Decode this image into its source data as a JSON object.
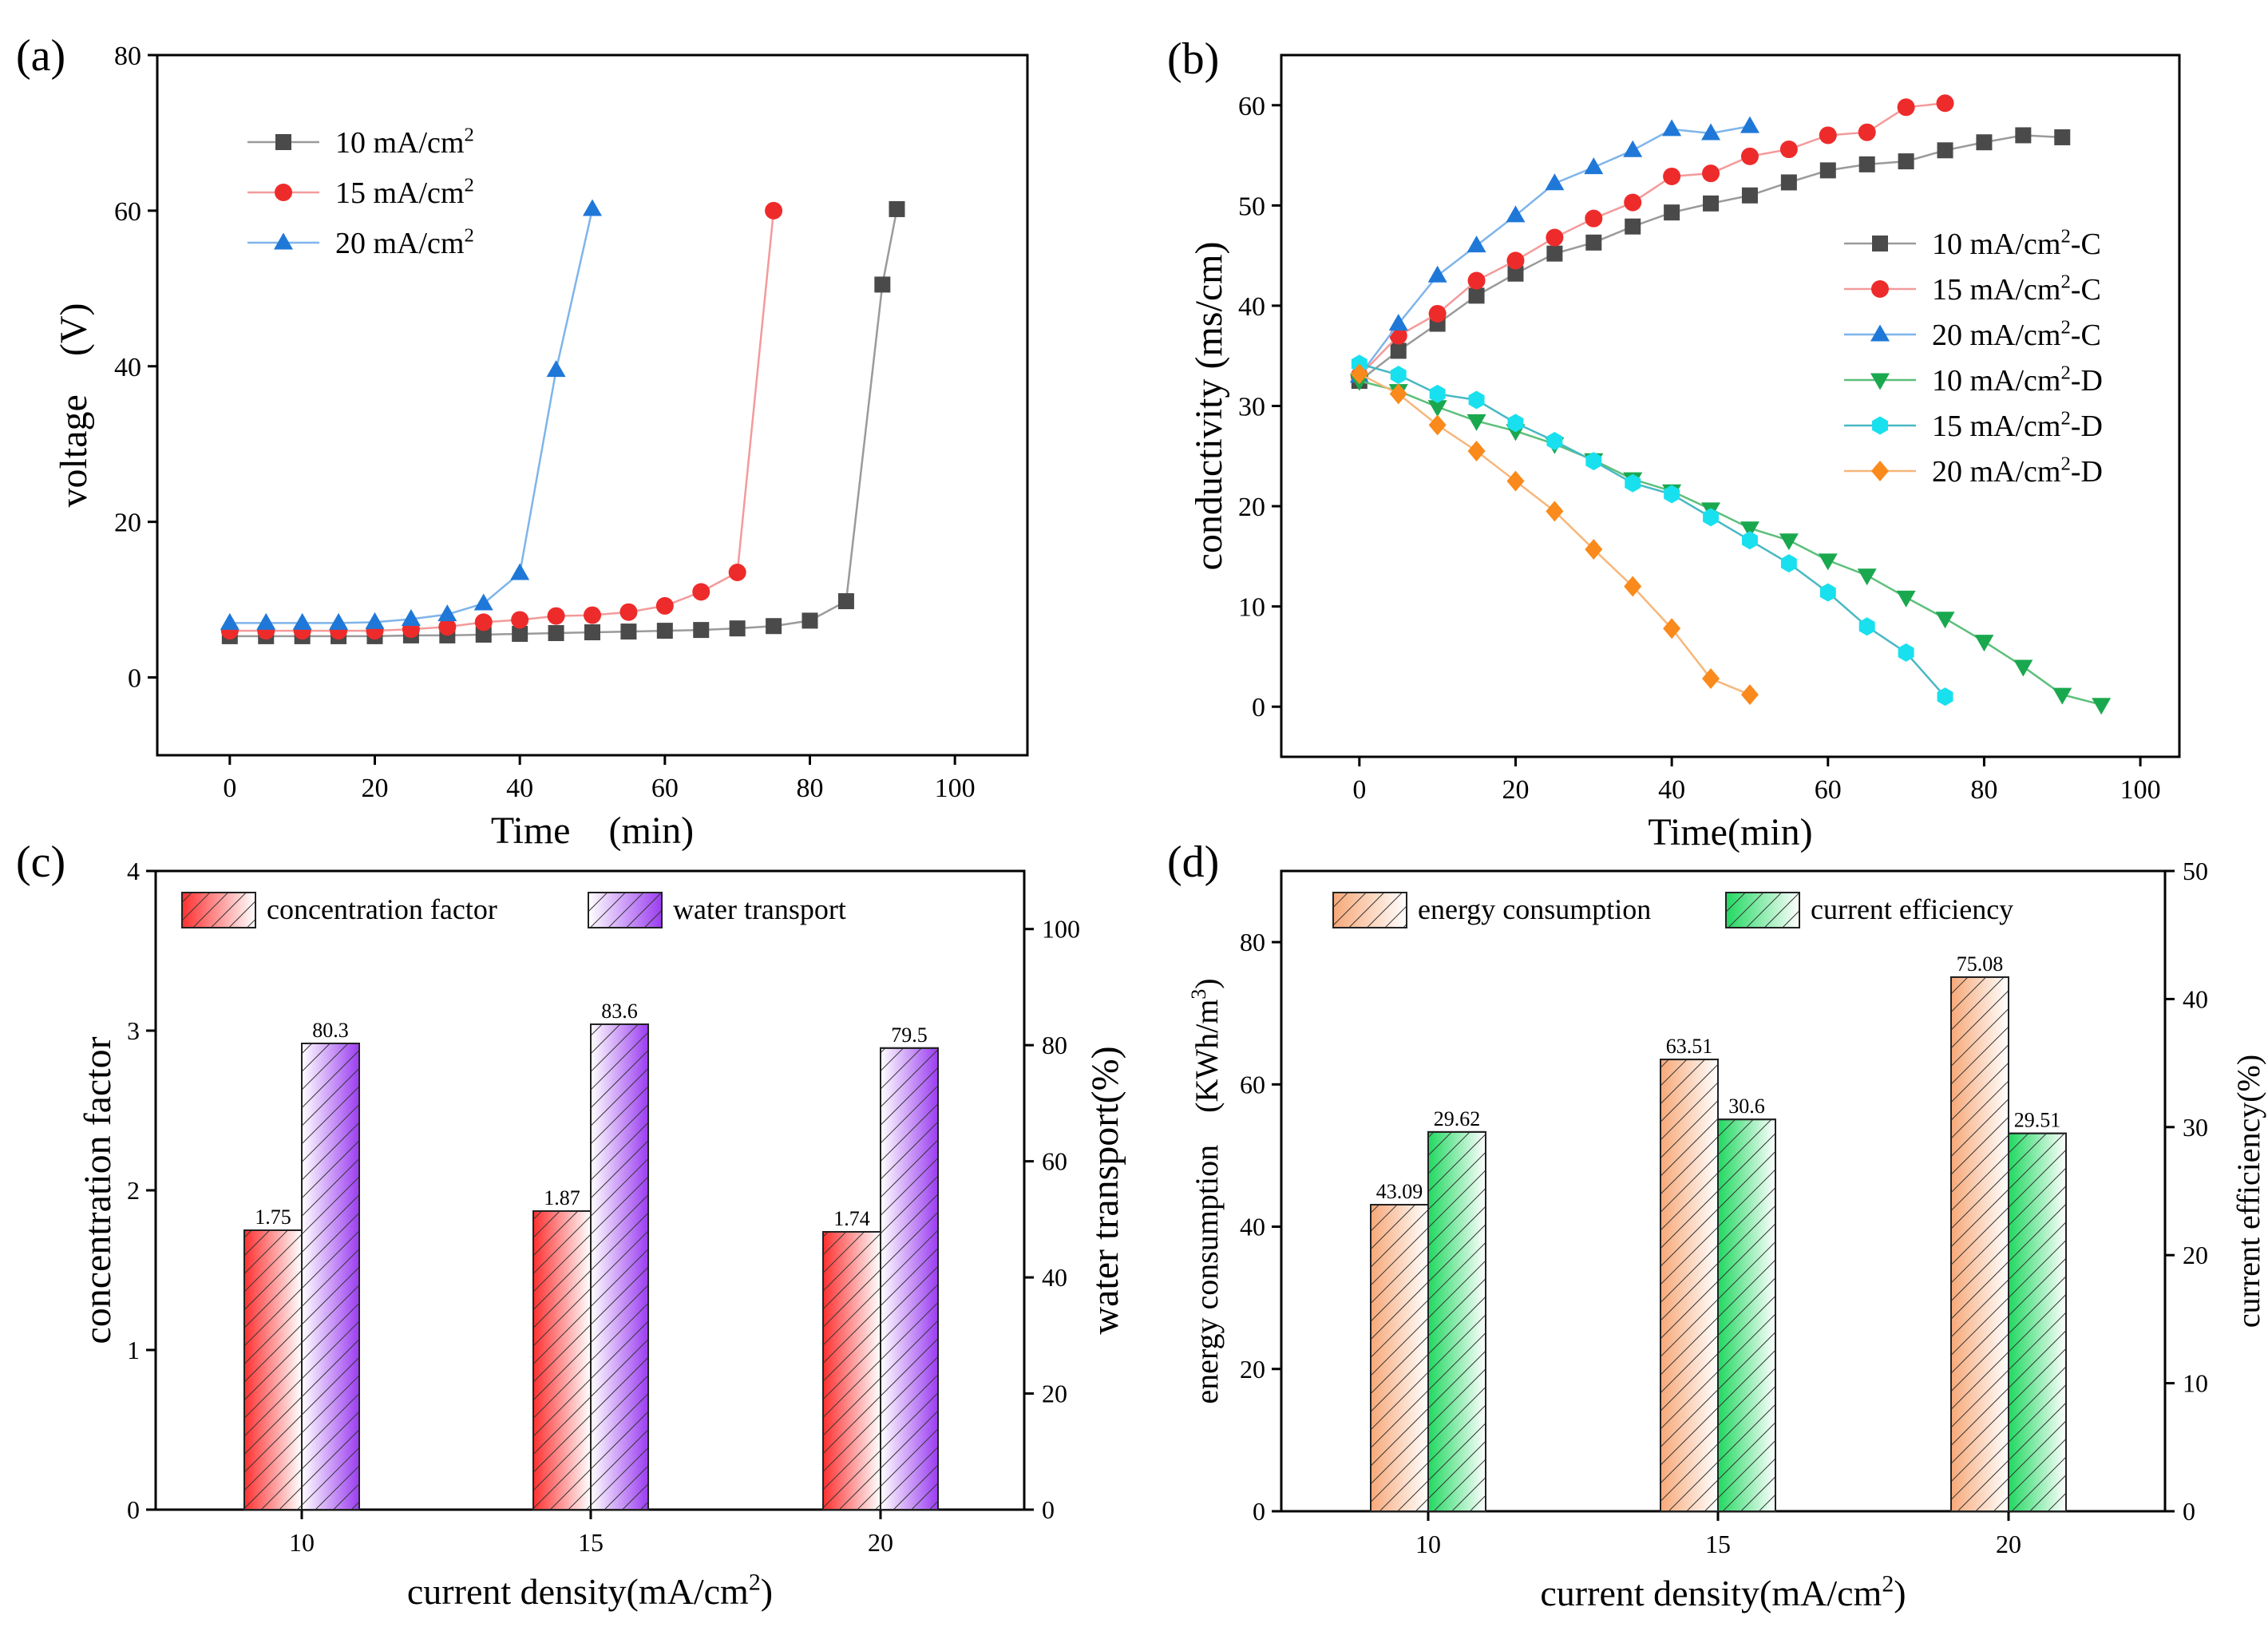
{
  "panels": {
    "a": {
      "label": "(a)"
    },
    "b": {
      "label": "(b)"
    },
    "c": {
      "label": "(c)"
    },
    "d": {
      "label": "(d)"
    }
  },
  "chart_data": [
    {
      "id": "a",
      "type": "line",
      "title": "",
      "xlabel": "Time　(min)",
      "ylabel": "voltage　(V)",
      "xlim": [
        -10,
        110
      ],
      "ylim": [
        -10,
        80
      ],
      "xticks": [
        0,
        20,
        40,
        60,
        80,
        100
      ],
      "yticks": [
        0,
        20,
        40,
        60,
        80
      ],
      "legend_position": "top-left",
      "series": [
        {
          "name": "10 mA/cm",
          "sup": "2",
          "suffix": "",
          "marker": "square",
          "color": "#4a4a4a",
          "line": "#9a9a9a",
          "x": [
            0,
            5,
            10,
            15,
            20,
            25,
            30,
            35,
            40,
            45,
            50,
            55,
            60,
            65,
            70,
            75,
            80,
            85,
            90,
            92
          ],
          "y": [
            5.3,
            5.3,
            5.3,
            5.3,
            5.3,
            5.4,
            5.4,
            5.5,
            5.6,
            5.7,
            5.8,
            5.9,
            6.0,
            6.1,
            6.3,
            6.6,
            7.3,
            9.8,
            50.5,
            60.2
          ]
        },
        {
          "name": "15 mA/cm",
          "sup": "2",
          "suffix": "",
          "marker": "circle",
          "color": "#ee2b2b",
          "line": "#f49a9a",
          "x": [
            0,
            5,
            10,
            15,
            20,
            25,
            30,
            35,
            40,
            45,
            50,
            55,
            60,
            65,
            70,
            75
          ],
          "y": [
            6.0,
            6.0,
            6.0,
            6.0,
            6.0,
            6.2,
            6.5,
            7.1,
            7.4,
            7.9,
            8.0,
            8.4,
            9.2,
            11.0,
            13.5,
            60.0
          ]
        },
        {
          "name": "20 mA/cm",
          "sup": "2",
          "suffix": "",
          "marker": "triangle-up",
          "color": "#1f78d8",
          "line": "#7fb4ea",
          "x": [
            0,
            5,
            10,
            15,
            20,
            25,
            30,
            35,
            40,
            45,
            50
          ],
          "y": [
            7.0,
            7.0,
            7.0,
            7.0,
            7.1,
            7.5,
            8.1,
            9.5,
            13.4,
            39.5,
            60.2
          ]
        }
      ]
    },
    {
      "id": "b",
      "type": "line",
      "title": "",
      "xlabel": "Time(min)",
      "ylabel": "conductivity (ms/cm)",
      "xlim": [
        -10,
        105
      ],
      "ylim": [
        -5,
        65
      ],
      "xticks": [
        0,
        20,
        40,
        60,
        80,
        100
      ],
      "yticks": [
        0,
        10,
        20,
        30,
        40,
        50,
        60
      ],
      "legend_position": "right",
      "series": [
        {
          "name": "10 mA/cm",
          "sup": "2",
          "suffix": "-C",
          "marker": "square",
          "color": "#4a4a4a",
          "line": "#9a9a9a",
          "x": [
            0,
            5,
            10,
            15,
            20,
            25,
            30,
            35,
            40,
            45,
            50,
            55,
            60,
            65,
            70,
            75,
            80,
            85,
            90
          ],
          "y": [
            32.5,
            35.5,
            38.2,
            41.0,
            43.2,
            45.2,
            46.3,
            47.9,
            49.3,
            50.2,
            51.0,
            52.3,
            53.5,
            54.1,
            54.4,
            55.5,
            56.3,
            57.0,
            56.8
          ]
        },
        {
          "name": "15 mA/cm",
          "sup": "2",
          "suffix": "-C",
          "marker": "circle",
          "color": "#ee2b2b",
          "line": "#f49a9a",
          "x": [
            0,
            5,
            10,
            15,
            20,
            25,
            30,
            35,
            40,
            45,
            50,
            55,
            60,
            65,
            70,
            75
          ],
          "y": [
            33.0,
            37.0,
            39.2,
            42.5,
            44.5,
            46.8,
            48.7,
            50.3,
            52.9,
            53.2,
            54.9,
            55.6,
            57.0,
            57.3,
            59.8,
            60.2
          ]
        },
        {
          "name": "20 mA/cm",
          "sup": "2",
          "suffix": "-C",
          "marker": "triangle-up",
          "color": "#1f78d8",
          "line": "#7fb4ea",
          "x": [
            0,
            5,
            10,
            15,
            20,
            25,
            30,
            35,
            40,
            45,
            50
          ],
          "y": [
            33.0,
            38.2,
            43.0,
            46.0,
            49.0,
            52.2,
            53.8,
            55.5,
            57.6,
            57.2,
            57.9
          ]
        },
        {
          "name": "10 mA/cm",
          "sup": "2",
          "suffix": "-D",
          "marker": "triangle-down",
          "color": "#1aa84f",
          "line": "#5cbf7a",
          "x": [
            0,
            5,
            10,
            15,
            20,
            25,
            30,
            35,
            40,
            45,
            50,
            55,
            60,
            65,
            70,
            75,
            80,
            85,
            90,
            95
          ],
          "y": [
            32.5,
            31.5,
            29.9,
            28.5,
            27.5,
            26.2,
            24.6,
            22.7,
            21.5,
            19.7,
            17.8,
            16.6,
            14.6,
            13.1,
            10.9,
            8.8,
            6.5,
            4.0,
            1.2,
            0.2
          ]
        },
        {
          "name": "15 mA/cm",
          "sup": "2",
          "suffix": "-D",
          "marker": "hexagon",
          "color": "#19e0ee",
          "line": "#48b8c4",
          "x": [
            0,
            5,
            10,
            15,
            20,
            25,
            30,
            35,
            40,
            45,
            50,
            55,
            60,
            65,
            70,
            75
          ],
          "y": [
            34.2,
            33.1,
            31.2,
            30.6,
            28.3,
            26.5,
            24.5,
            22.3,
            21.2,
            18.9,
            16.6,
            14.3,
            11.4,
            8.0,
            5.4,
            1.0
          ]
        },
        {
          "name": "20 mA/cm",
          "sup": "2",
          "suffix": "-D",
          "marker": "diamond",
          "color": "#f98a1b",
          "line": "#f7b67a",
          "x": [
            0,
            5,
            10,
            15,
            20,
            25,
            30,
            35,
            40,
            45,
            50
          ],
          "y": [
            33.2,
            31.2,
            28.1,
            25.5,
            22.5,
            19.5,
            15.7,
            12.0,
            7.8,
            2.8,
            1.2
          ]
        }
      ]
    },
    {
      "id": "c",
      "type": "bar",
      "title": "",
      "xlabel": "current density(mA/cm",
      "xlabel_sup": "2",
      "xlabel_tail": ")",
      "ylabel": "concentration factor",
      "ylabel_right": "water transport(%)",
      "ylim": [
        0,
        4
      ],
      "ylim_right": [
        0,
        110
      ],
      "yticks": [
        0,
        1,
        2,
        3,
        4
      ],
      "yticks_right": [
        0,
        20,
        40,
        60,
        80,
        100
      ],
      "categories": [
        "10",
        "15",
        "20"
      ],
      "legend_position": "top",
      "series": [
        {
          "name": "concentration factor",
          "axis": "left",
          "color": "#ff3030",
          "values": [
            1.75,
            1.87,
            1.74
          ],
          "labels": [
            "1.75",
            "1.87",
            "1.74"
          ]
        },
        {
          "name": "water transport",
          "axis": "right",
          "color": "#9b3df0",
          "values": [
            80.3,
            83.6,
            79.5
          ],
          "labels": [
            "80.3",
            "83.6",
            "79.5"
          ]
        }
      ]
    },
    {
      "id": "d",
      "type": "bar",
      "title": "",
      "xlabel": "current density(mA/cm",
      "xlabel_sup": "2",
      "xlabel_tail": ")",
      "ylabel": "energy consumption　(KWh/m",
      "ylabel_sup": "3",
      "ylabel_tail": ")",
      "ylabel_right": "current efficiency(%)",
      "ylim": [
        0,
        90
      ],
      "ylim_right": [
        0,
        50
      ],
      "yticks": [
        0,
        20,
        40,
        60,
        80
      ],
      "yticks_right": [
        0,
        10,
        20,
        30,
        40,
        50
      ],
      "categories": [
        "10",
        "15",
        "20"
      ],
      "legend_position": "top",
      "series": [
        {
          "name": "energy consumption",
          "axis": "left",
          "color": "#f7a878",
          "values": [
            43.09,
            63.51,
            75.08
          ],
          "labels": [
            "43.09",
            "63.51",
            "75.08"
          ]
        },
        {
          "name": "current efficiency",
          "axis": "right",
          "color": "#20d860",
          "values": [
            29.62,
            30.6,
            29.51
          ],
          "labels": [
            "29.62",
            "30.6",
            "29.51"
          ]
        }
      ]
    }
  ]
}
